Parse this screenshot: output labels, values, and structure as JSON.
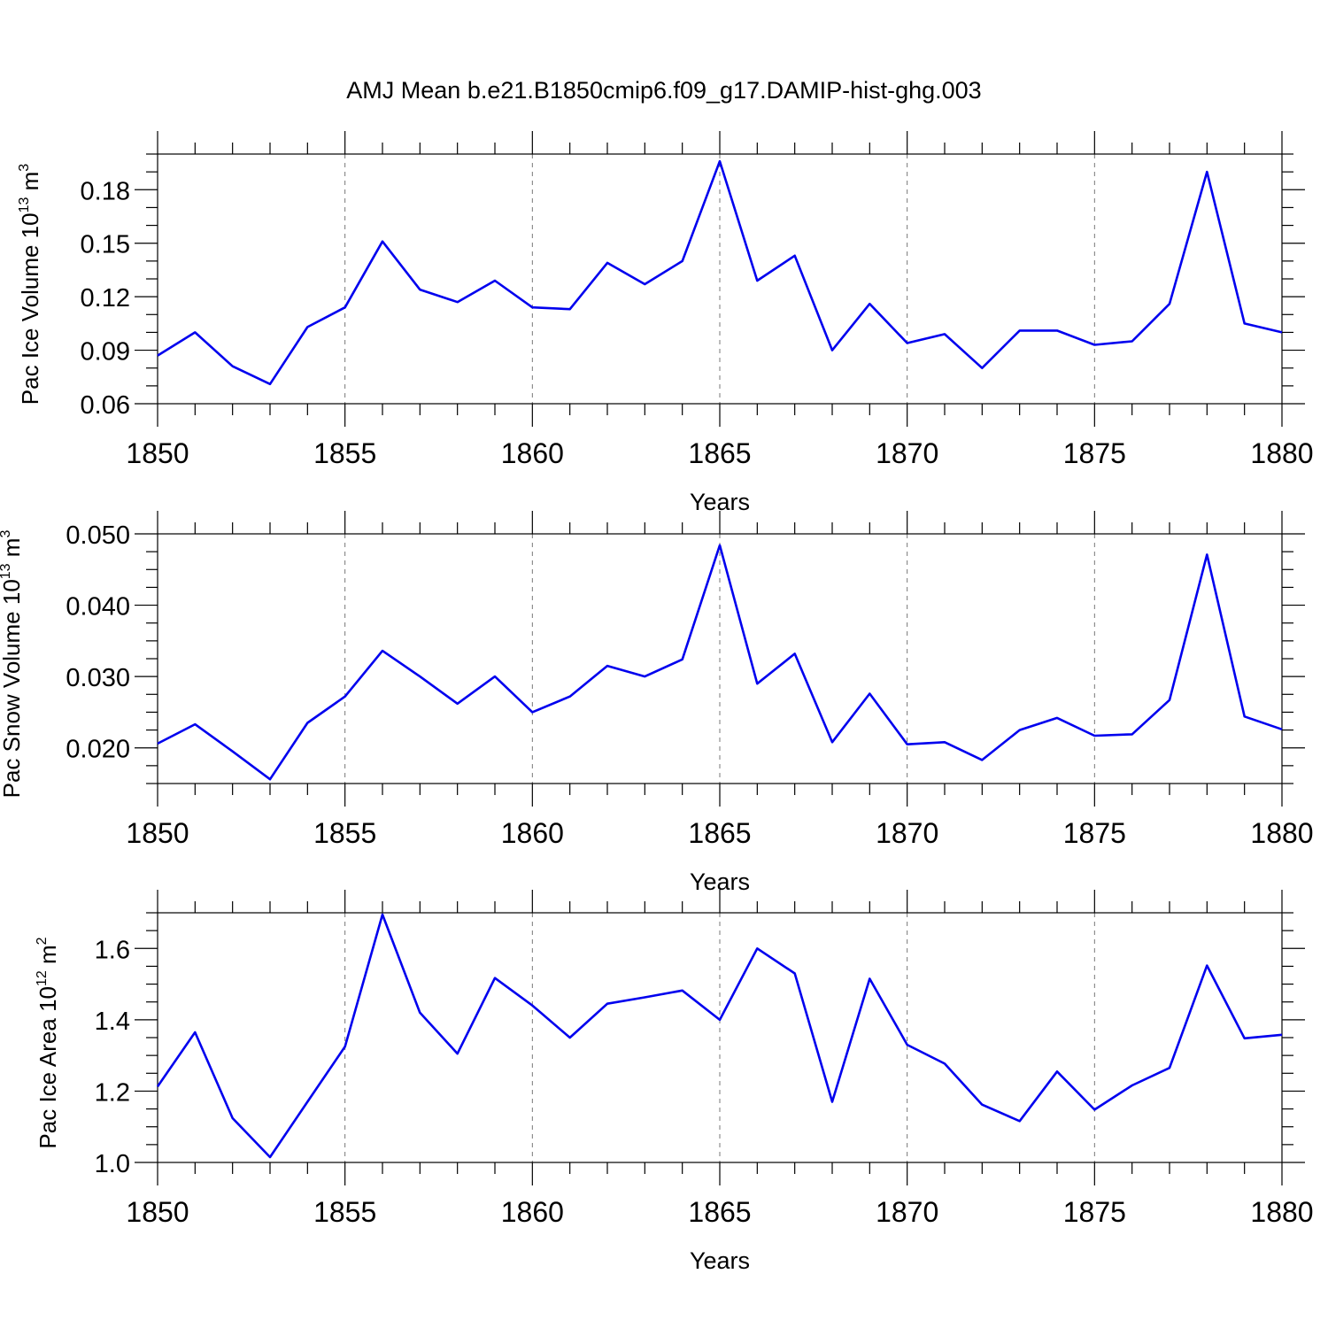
{
  "title": "AMJ Mean b.e21.B1850cmip6.f09_g17.DAMIP-hist-ghg.003",
  "series_color": "#0000ee",
  "chart_data": [
    {
      "type": "line",
      "title": "AMJ Mean b.e21.B1850cmip6.f09_g17.DAMIP-hist-ghg.003",
      "xlabel": "Years",
      "ylabel": {
        "base": "Pac Ice Volume 10",
        "exp1": "13",
        "mid": " m",
        "exp2": "3"
      },
      "xlim": [
        1850,
        1880
      ],
      "ylim": [
        0.06,
        0.2
      ],
      "xticks": [
        1850,
        1855,
        1860,
        1865,
        1870,
        1875,
        1880
      ],
      "xtick_labels": [
        "1850",
        "1855",
        "1860",
        "1865",
        "1870",
        "1875",
        "1880"
      ],
      "yticks": [
        0.06,
        0.09,
        0.12,
        0.15,
        0.18
      ],
      "ytick_labels": [
        "0.06",
        "0.09",
        "0.12",
        "0.15",
        "0.18"
      ],
      "yminor_step": 0.01,
      "x": [
        1850,
        1851,
        1852,
        1853,
        1854,
        1855,
        1856,
        1857,
        1858,
        1859,
        1860,
        1861,
        1862,
        1863,
        1864,
        1865,
        1866,
        1867,
        1868,
        1869,
        1870,
        1871,
        1872,
        1873,
        1874,
        1875,
        1876,
        1877,
        1878,
        1879,
        1880
      ],
      "values": [
        0.087,
        0.1,
        0.081,
        0.071,
        0.103,
        0.114,
        0.151,
        0.124,
        0.117,
        0.129,
        0.114,
        0.113,
        0.139,
        0.127,
        0.14,
        0.196,
        0.129,
        0.143,
        0.09,
        0.116,
        0.094,
        0.099,
        0.08,
        0.101,
        0.101,
        0.093,
        0.095,
        0.116,
        0.19,
        0.105,
        0.1
      ]
    },
    {
      "type": "line",
      "xlabel": "Years",
      "ylabel": {
        "base": "Pac Snow Volume 10",
        "exp1": "13",
        "mid": " m",
        "exp2": "3"
      },
      "xlim": [
        1850,
        1880
      ],
      "ylim": [
        0.015,
        0.05
      ],
      "xticks": [
        1850,
        1855,
        1860,
        1865,
        1870,
        1875,
        1880
      ],
      "xtick_labels": [
        "1850",
        "1855",
        "1860",
        "1865",
        "1870",
        "1875",
        "1880"
      ],
      "yticks": [
        0.02,
        0.03,
        0.04,
        0.05
      ],
      "ytick_labels": [
        "0.020",
        "0.030",
        "0.040",
        "0.050"
      ],
      "yminor_step": 0.0025,
      "x": [
        1850,
        1851,
        1852,
        1853,
        1854,
        1855,
        1856,
        1857,
        1858,
        1859,
        1860,
        1861,
        1862,
        1863,
        1864,
        1865,
        1866,
        1867,
        1868,
        1869,
        1870,
        1871,
        1872,
        1873,
        1874,
        1875,
        1876,
        1877,
        1878,
        1879,
        1880
      ],
      "values": [
        0.0206,
        0.0233,
        0.0195,
        0.0156,
        0.0235,
        0.0272,
        0.0336,
        0.03,
        0.0262,
        0.03,
        0.025,
        0.0272,
        0.0315,
        0.03,
        0.0324,
        0.0484,
        0.029,
        0.0332,
        0.0208,
        0.0276,
        0.0205,
        0.0208,
        0.0183,
        0.0225,
        0.0242,
        0.0217,
        0.0219,
        0.0267,
        0.0471,
        0.0244,
        0.0226
      ]
    },
    {
      "type": "line",
      "xlabel": "Years",
      "ylabel": {
        "base": "Pac Ice Area 10",
        "exp1": "12",
        "mid": " m",
        "exp2": "2"
      },
      "xlim": [
        1850,
        1880
      ],
      "ylim": [
        1.0,
        1.7
      ],
      "xticks": [
        1850,
        1855,
        1860,
        1865,
        1870,
        1875,
        1880
      ],
      "xtick_labels": [
        "1850",
        "1855",
        "1860",
        "1865",
        "1870",
        "1875",
        "1880"
      ],
      "yticks": [
        1.0,
        1.2,
        1.4,
        1.6
      ],
      "ytick_labels": [
        "1.0",
        "1.2",
        "1.4",
        "1.6"
      ],
      "yminor_step": 0.05,
      "x": [
        1850,
        1851,
        1852,
        1853,
        1854,
        1855,
        1856,
        1857,
        1858,
        1859,
        1860,
        1861,
        1862,
        1863,
        1864,
        1865,
        1866,
        1867,
        1868,
        1869,
        1870,
        1871,
        1872,
        1873,
        1874,
        1875,
        1876,
        1877,
        1878,
        1879,
        1880
      ],
      "values": [
        1.213,
        1.365,
        1.124,
        1.015,
        1.17,
        1.325,
        1.695,
        1.42,
        1.305,
        1.517,
        1.44,
        1.35,
        1.445,
        1.463,
        1.482,
        1.4,
        1.6,
        1.53,
        1.17,
        1.515,
        1.33,
        1.277,
        1.162,
        1.116,
        1.255,
        1.148,
        1.216,
        1.265,
        1.552,
        1.348,
        1.358
      ]
    }
  ]
}
